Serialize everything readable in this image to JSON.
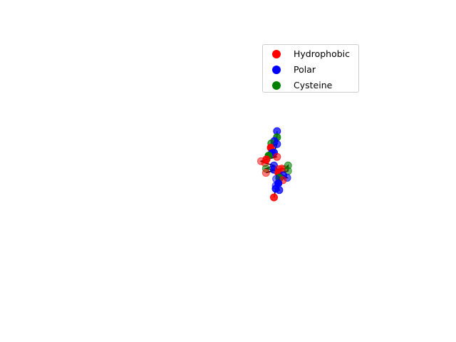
{
  "chart_data": {
    "type": "scatter",
    "title": "",
    "xlabel": "",
    "ylabel": "",
    "axes_visible": false,
    "legend_position": "top-right",
    "xlim": [
      -10,
      10
    ],
    "ylim": [
      -10,
      10
    ],
    "zlim": [
      -10,
      10
    ],
    "series": [
      {
        "name": "Hydrophobic",
        "color": "#ff0000"
      },
      {
        "name": "Polar",
        "color": "#0000ff"
      },
      {
        "name": "Cysteine",
        "color": "#008000"
      }
    ],
    "points": [
      {
        "x": 1.1,
        "y": -0.5,
        "z": 6.5,
        "t": "P",
        "a": 0.75
      },
      {
        "x": 1.1,
        "y": -0.5,
        "z": 5.5,
        "t": "C",
        "a": 0.85
      },
      {
        "x": 0.5,
        "y": -0.5,
        "z": 4.9,
        "t": "P",
        "a": 0.8
      },
      {
        "x": -0.2,
        "y": -0.5,
        "z": 4.5,
        "t": "C",
        "a": 0.7
      },
      {
        "x": -0.3,
        "y": -0.5,
        "z": 3.8,
        "t": "H",
        "a": 1.0
      },
      {
        "x": 1.1,
        "y": -0.5,
        "z": 4.4,
        "t": "P",
        "a": 0.7
      },
      {
        "x": 0.4,
        "y": -0.5,
        "z": 3.0,
        "t": "P",
        "a": 0.85
      },
      {
        "x": -0.1,
        "y": -0.5,
        "z": 2.9,
        "t": "P",
        "a": 0.9
      },
      {
        "x": -0.8,
        "y": -0.5,
        "z": 2.5,
        "t": "C",
        "a": 1.0
      },
      {
        "x": 1.1,
        "y": -0.5,
        "z": 2.3,
        "t": "H",
        "a": 0.6
      },
      {
        "x": -1.3,
        "y": -0.5,
        "z": 1.9,
        "t": "H",
        "a": 0.9
      },
      {
        "x": -2.5,
        "y": -0.5,
        "z": 1.6,
        "t": "H",
        "a": 0.5
      },
      {
        "x": -1.6,
        "y": -0.5,
        "z": 1.3,
        "t": "H",
        "a": 0.5
      },
      {
        "x": 0.4,
        "y": -0.5,
        "z": 0.9,
        "t": "P",
        "a": 0.7
      },
      {
        "x": -1.4,
        "y": -0.5,
        "z": 0.4,
        "t": "C",
        "a": 0.55
      },
      {
        "x": 0.4,
        "y": -0.5,
        "z": 0.2,
        "t": "P",
        "a": 0.8
      },
      {
        "x": -1.4,
        "y": -0.5,
        "z": -0.3,
        "t": "H",
        "a": 0.5
      },
      {
        "x": 1.5,
        "y": -0.5,
        "z": 0.3,
        "t": "H",
        "a": 0.6
      },
      {
        "x": 2.2,
        "y": -0.5,
        "z": 0.4,
        "t": "H",
        "a": 0.6
      },
      {
        "x": 2.8,
        "y": -0.5,
        "z": 0.3,
        "t": "H",
        "a": 0.5
      },
      {
        "x": 3.6,
        "y": -0.5,
        "z": 0.9,
        "t": "C",
        "a": 0.6
      },
      {
        "x": 3.6,
        "y": -0.5,
        "z": 0.0,
        "t": "C",
        "a": 0.55
      },
      {
        "x": 1.4,
        "y": -0.5,
        "z": -0.3,
        "t": "H",
        "a": 1.0
      },
      {
        "x": 2.5,
        "y": -0.5,
        "z": -0.7,
        "t": "P",
        "a": 0.75
      },
      {
        "x": 3.4,
        "y": -0.5,
        "z": -1.1,
        "t": "P",
        "a": 0.6
      },
      {
        "x": 1.6,
        "y": -0.5,
        "z": -1.1,
        "t": "C",
        "a": 1.0
      },
      {
        "x": 2.4,
        "y": -0.5,
        "z": -1.5,
        "t": "H",
        "a": 0.6
      },
      {
        "x": 0.9,
        "y": -0.5,
        "z": -1.3,
        "t": "P",
        "a": 0.5
      },
      {
        "x": 1.4,
        "y": -0.5,
        "z": -2.0,
        "t": "P",
        "a": 1.0
      },
      {
        "x": 0.8,
        "y": -0.5,
        "z": -2.4,
        "t": "P",
        "a": 0.5
      },
      {
        "x": 1.6,
        "y": -0.5,
        "z": -3.1,
        "t": "P",
        "a": 0.75
      },
      {
        "x": 0.8,
        "y": -0.5,
        "z": -2.9,
        "t": "P",
        "a": 0.85
      },
      {
        "x": 0.4,
        "y": -0.5,
        "z": -4.3,
        "t": "H",
        "a": 0.85
      }
    ]
  }
}
